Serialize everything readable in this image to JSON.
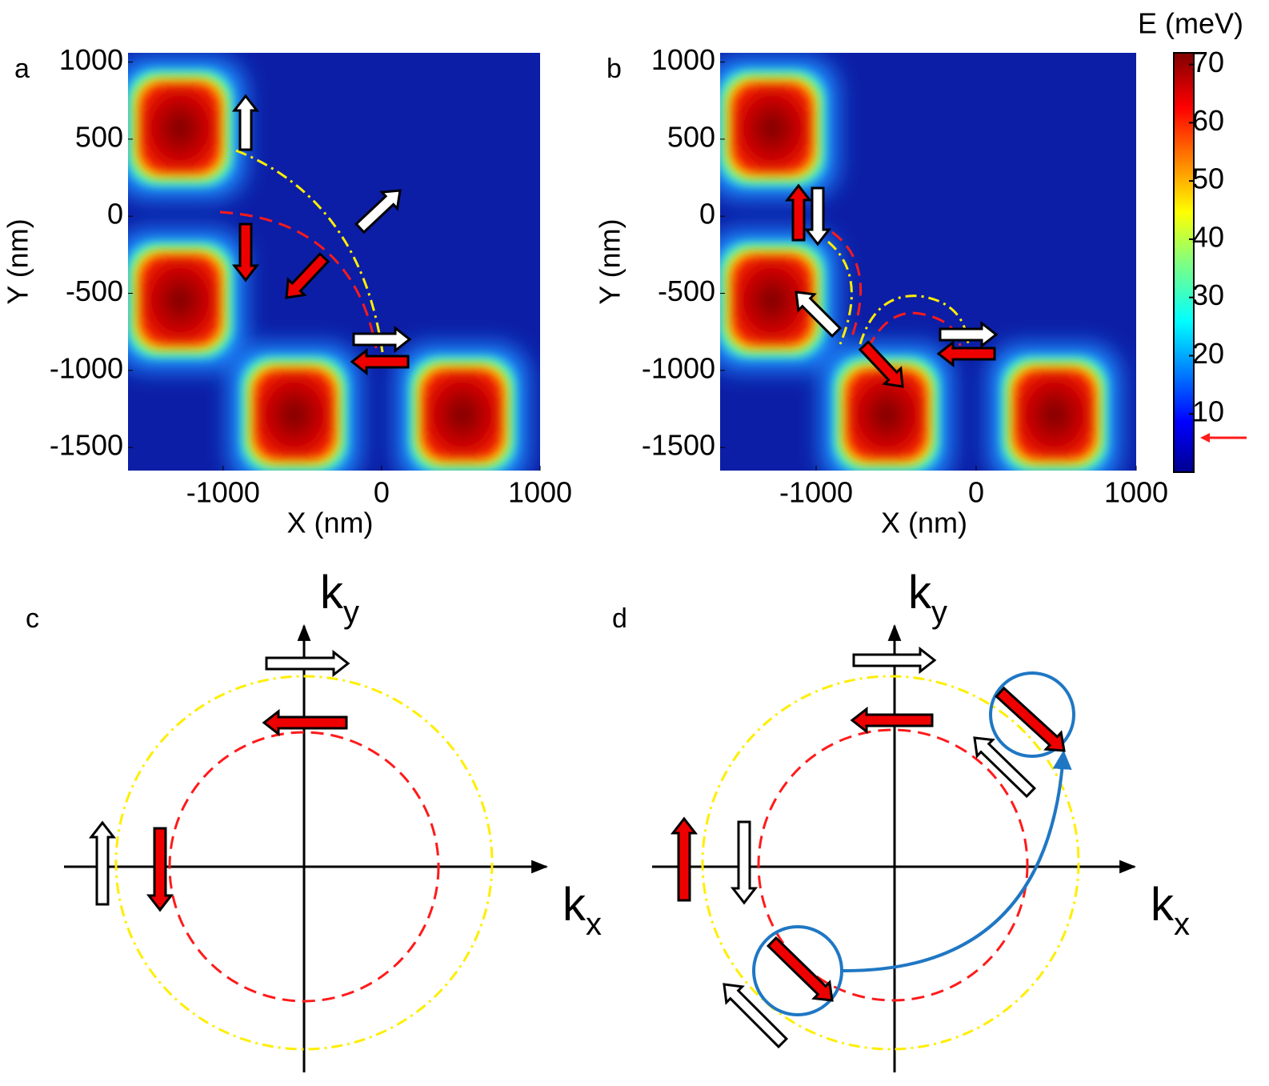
{
  "chart_data": [
    {
      "type": "heatmap",
      "panel_label": "a",
      "xlabel": "X (nm)",
      "ylabel": "Y (nm)",
      "xlim": [
        -1600,
        1000
      ],
      "ylim": [
        -1650,
        1060
      ],
      "xticks": [
        -1000,
        0,
        1000
      ],
      "yticks": [
        1000,
        500,
        0,
        -500,
        -1000,
        -1500
      ]
    },
    {
      "type": "heatmap",
      "panel_label": "b",
      "xlabel": "X (nm)",
      "ylabel": "Y (nm)",
      "xlim": [
        -1600,
        1000
      ],
      "ylim": [
        -1650,
        1060
      ],
      "xticks": [
        -1000,
        0,
        1000
      ],
      "yticks": [
        1000,
        500,
        0,
        -500,
        -1000,
        -1500
      ]
    },
    {
      "type": "colorbar",
      "title": "E (meV)",
      "ylim": [
        0,
        72
      ],
      "yticks": [
        10,
        20,
        30,
        40,
        50,
        60,
        70
      ]
    }
  ],
  "diagrams": [
    {
      "panel_label": "c",
      "y_axis": {
        "symbol": "k",
        "subscript": "y"
      },
      "x_axis": {
        "symbol": "k",
        "subscript": "x"
      }
    },
    {
      "panel_label": "d",
      "y_axis": {
        "symbol": "k",
        "subscript": "y"
      },
      "x_axis": {
        "symbol": "k",
        "subscript": "x"
      }
    }
  ]
}
